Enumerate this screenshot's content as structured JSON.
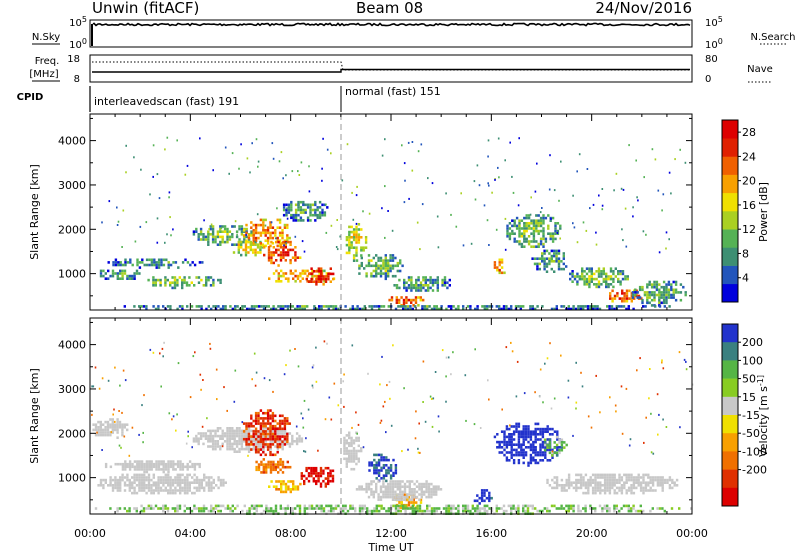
{
  "header": {
    "station": "Unwin (fitACF)",
    "beam": "Beam 08",
    "date": "24/Nov/2016"
  },
  "strip_sky": {
    "left_label": "N.Sky",
    "right_label": "N.Search",
    "y_ticks": [
      "10^5",
      "10^0"
    ]
  },
  "strip_freq": {
    "left_label_line1": "Freq.",
    "left_label_line2": "[MHz]",
    "right_label": "Nave",
    "left_ticks": [
      "18",
      "8"
    ],
    "right_ticks": [
      "80",
      "0"
    ]
  },
  "strip_cpid": {
    "label": "CPID",
    "segments": [
      {
        "name": "interleavedscan (fast) 191",
        "start_hour": 0
      },
      {
        "name": "normal (fast) 151",
        "start_hour": 10
      }
    ]
  },
  "time_ticks": [
    "00:00",
    "04:00",
    "08:00",
    "12:00",
    "16:00",
    "20:00",
    "00:00"
  ],
  "xlabel": "Time UT",
  "chart_data": [
    {
      "type": "heatmap",
      "panel": "power",
      "x_range_hours": [
        0,
        24
      ],
      "ylabel": "Slant Range [km]",
      "ylim": [
        180,
        4600
      ],
      "yticks": [
        1000,
        2000,
        3000,
        4000
      ],
      "colorbar_label": "Power [dB]",
      "colorbar_ticks": [
        4,
        8,
        12,
        16,
        20,
        24,
        28
      ],
      "colorbar_range": [
        0,
        30
      ],
      "colors": [
        "#0000dd",
        "#2255bb",
        "#3d8f73",
        "#55b255",
        "#aad022",
        "#f0e000",
        "#f8a000",
        "#f06000",
        "#e02000",
        "#dd0000"
      ],
      "echo_regions": [
        {
          "t0": 0.2,
          "t1": 2.2,
          "r0": 880,
          "r1": 1150,
          "value": 10
        },
        {
          "t0": 0.6,
          "t1": 4.5,
          "r0": 1150,
          "r1": 1400,
          "value": 9
        },
        {
          "t0": 2.0,
          "t1": 5.2,
          "r0": 700,
          "r1": 1000,
          "value": 13
        },
        {
          "t0": 4.0,
          "t1": 6.5,
          "r0": 1650,
          "r1": 2150,
          "value": 12
        },
        {
          "t0": 5.5,
          "t1": 7.0,
          "r0": 1400,
          "r1": 1800,
          "value": 16
        },
        {
          "t0": 6.0,
          "t1": 8.0,
          "r0": 1600,
          "r1": 2300,
          "value": 22
        },
        {
          "t0": 6.8,
          "t1": 8.4,
          "r0": 1200,
          "r1": 1800,
          "value": 26
        },
        {
          "t0": 7.0,
          "t1": 9.8,
          "r0": 800,
          "r1": 1150,
          "value": 20
        },
        {
          "t0": 8.5,
          "t1": 9.8,
          "r0": 780,
          "r1": 1200,
          "value": 28
        },
        {
          "t0": 7.5,
          "t1": 9.5,
          "r0": 2200,
          "r1": 2700,
          "value": 10
        },
        {
          "t0": 10.1,
          "t1": 11.0,
          "r0": 1300,
          "r1": 2200,
          "value": 16
        },
        {
          "t0": 10.5,
          "t1": 12.5,
          "r0": 900,
          "r1": 1500,
          "value": 12
        },
        {
          "t0": 11.8,
          "t1": 13.3,
          "r0": 280,
          "r1": 550,
          "value": 24
        },
        {
          "t0": 12.0,
          "t1": 14.5,
          "r0": 600,
          "r1": 1000,
          "value": 10
        },
        {
          "t0": 16.0,
          "t1": 16.6,
          "r0": 1000,
          "r1": 1400,
          "value": 22
        },
        {
          "t0": 16.5,
          "t1": 18.8,
          "r0": 1600,
          "r1": 2400,
          "value": 12
        },
        {
          "t0": 17.5,
          "t1": 19.0,
          "r0": 1000,
          "r1": 1600,
          "value": 10
        },
        {
          "t0": 19.0,
          "t1": 21.5,
          "r0": 700,
          "r1": 1200,
          "value": 12
        },
        {
          "t0": 20.5,
          "t1": 22.0,
          "r0": 350,
          "r1": 700,
          "value": 24
        },
        {
          "t0": 21.5,
          "t1": 23.8,
          "r0": 300,
          "r1": 900,
          "value": 10
        },
        {
          "t0": 0.0,
          "t1": 24.0,
          "r0": 200,
          "r1": 350,
          "value": 8
        }
      ]
    },
    {
      "type": "heatmap",
      "panel": "velocity",
      "x_range_hours": [
        0,
        24
      ],
      "ylabel": "Slant Range [km]",
      "ylim": [
        180,
        4600
      ],
      "yticks": [
        1000,
        2000,
        3000,
        4000
      ],
      "colorbar_label": "Velocity [m s^-1]",
      "colorbar_ticks": [
        200,
        100,
        50,
        15,
        -15,
        -50,
        -100,
        -200
      ],
      "colors": [
        "#2233cc",
        "#3a8080",
        "#55b545",
        "#88cc22",
        "#c8c8c8",
        "#f0e000",
        "#f8a000",
        "#f07000",
        "#e03000",
        "#dd0000"
      ],
      "ground_scatter_color": "#c8c8c8",
      "echo_regions": [
        {
          "t0": 0.2,
          "t1": 5.5,
          "r0": 650,
          "r1": 1150,
          "value": 0,
          "ground": true
        },
        {
          "t0": 0.5,
          "t1": 4.5,
          "r0": 1150,
          "r1": 1450,
          "value": 0,
          "ground": true
        },
        {
          "t0": 0.0,
          "t1": 1.5,
          "r0": 1900,
          "r1": 2400,
          "value": 0,
          "ground": true
        },
        {
          "t0": 4.0,
          "t1": 8.5,
          "r0": 1600,
          "r1": 2200,
          "value": 0,
          "ground": true
        },
        {
          "t0": 6.0,
          "t1": 8.0,
          "r0": 1500,
          "r1": 2600,
          "value": -180
        },
        {
          "t0": 6.5,
          "t1": 8.0,
          "r0": 1100,
          "r1": 1500,
          "value": -120
        },
        {
          "t0": 8.3,
          "t1": 9.8,
          "r0": 800,
          "r1": 1300,
          "value": -220
        },
        {
          "t0": 7.0,
          "t1": 8.5,
          "r0": 700,
          "r1": 1000,
          "value": -60
        },
        {
          "t0": 10.0,
          "t1": 10.8,
          "r0": 1200,
          "r1": 2100,
          "value": 0,
          "ground": true
        },
        {
          "t0": 11.0,
          "t1": 12.2,
          "r0": 900,
          "r1": 1600,
          "value": 150
        },
        {
          "t0": 12.0,
          "t1": 13.2,
          "r0": 300,
          "r1": 700,
          "value": -80
        },
        {
          "t0": 10.5,
          "t1": 14.0,
          "r0": 500,
          "r1": 1000,
          "value": 0,
          "ground": true
        },
        {
          "t0": 15.2,
          "t1": 16.0,
          "r0": 400,
          "r1": 800,
          "value": 180
        },
        {
          "t0": 16.0,
          "t1": 18.8,
          "r0": 1300,
          "r1": 2300,
          "value": 200
        },
        {
          "t0": 18.0,
          "t1": 19.0,
          "r0": 1500,
          "r1": 2000,
          "value": 40
        },
        {
          "t0": 18.0,
          "t1": 23.5,
          "r0": 650,
          "r1": 1150,
          "value": 0,
          "ground": true
        },
        {
          "t0": 0.0,
          "t1": 24.0,
          "r0": 200,
          "r1": 450,
          "value": 30
        }
      ]
    }
  ]
}
